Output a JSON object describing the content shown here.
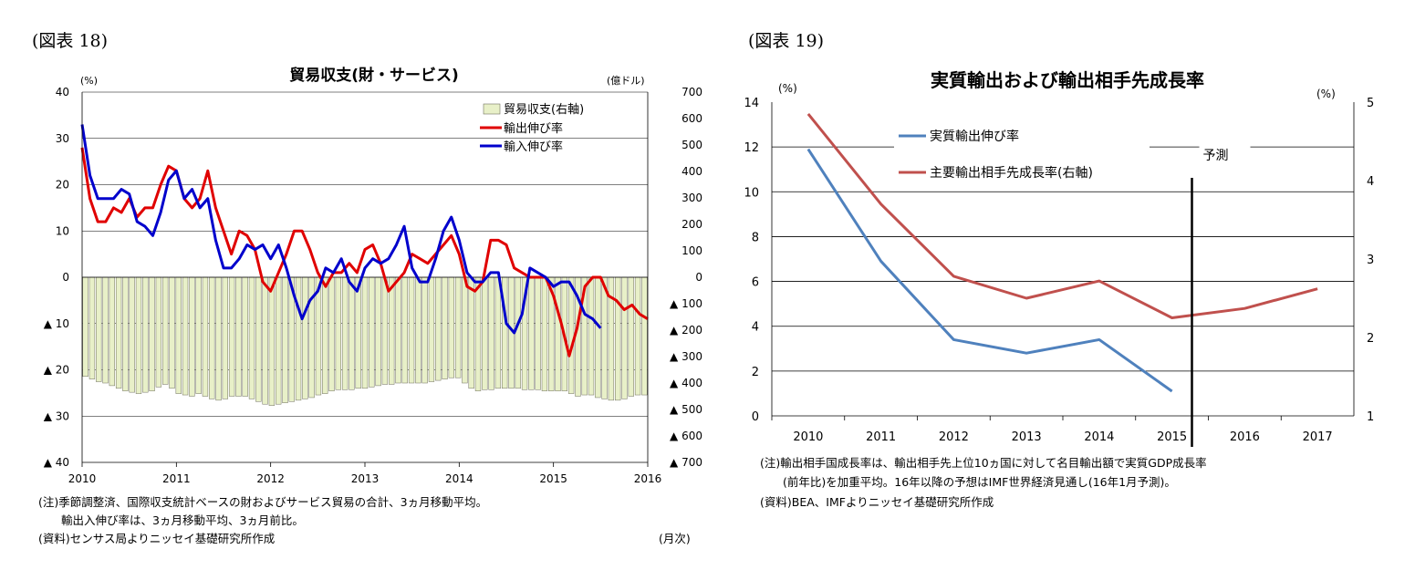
{
  "figures": [
    {
      "label": "(図表 18)",
      "notes": [
        "(注)季節調整済、国際収支統計ベースの財およびサービス貿易の合計、3ヵ月移動平均。",
        "　　輸出入伸び率は、3ヵ月移動平均、3ヵ月前比。",
        "(資料)センサス局よりニッセイ基礎研究所作成"
      ],
      "month_note": "(月次)"
    },
    {
      "label": "(図表 19)",
      "notes": [
        "(注)輸出相手国成長率は、輸出相手先上位10ヵ国に対して名目輸出額で実質GDP成長率",
        "　　(前年比)を加重平均。16年以降の予想はIMF世界経済見通し(16年1月予測)。",
        "(資料)BEA、IMFよりニッセイ基礎研究所作成"
      ]
    }
  ],
  "chart_data": [
    {
      "type": "bar+line",
      "title": "貿易収支(財・サービス)",
      "left_unit": "(%)",
      "right_unit": "(億ドル)",
      "ylim_left": [
        -40,
        40
      ],
      "ylim_right": [
        -700,
        700
      ],
      "left_ticks": [
        "40",
        "30",
        "20",
        "10",
        "0",
        "▲ 10",
        "▲ 20",
        "▲ 30",
        "▲ 40"
      ],
      "right_ticks": [
        "700",
        "600",
        "500",
        "400",
        "300",
        "200",
        "100",
        "0",
        "▲ 100",
        "▲ 200",
        "▲ 300",
        "▲ 400",
        "▲ 500",
        "▲ 600",
        "▲ 700"
      ],
      "x_ticks": [
        "2010",
        "2011",
        "2012",
        "2013",
        "2014",
        "2015",
        "2016"
      ],
      "x_range": [
        "2010-01",
        "2016-01"
      ],
      "grid": "horizontal",
      "legend_position": "top-right",
      "series": [
        {
          "name": "貿易収支(右軸)",
          "axis": "right",
          "kind": "bar",
          "color": "#e8f0c8",
          "edge": "#707060",
          "values": [
            -375,
            -385,
            -395,
            -400,
            -410,
            -420,
            -430,
            -435,
            -440,
            -435,
            -430,
            -415,
            -405,
            -420,
            -440,
            -445,
            -450,
            -440,
            -450,
            -460,
            -465,
            -460,
            -450,
            -450,
            -450,
            -460,
            -470,
            -480,
            -485,
            -480,
            -475,
            -470,
            -465,
            -460,
            -455,
            -445,
            -440,
            -430,
            -425,
            -425,
            -425,
            -420,
            -420,
            -415,
            -410,
            -405,
            -405,
            -400,
            -400,
            -400,
            -400,
            -400,
            -395,
            -390,
            -385,
            -380,
            -380,
            -400,
            -420,
            -430,
            -425,
            -425,
            -420,
            -420,
            -420,
            -420,
            -425,
            -425,
            -425,
            -430,
            -430,
            -430,
            -430,
            -440,
            -450,
            -445,
            -445,
            -455,
            -460,
            -465,
            -465,
            -460,
            -450,
            -445,
            -445
          ]
        },
        {
          "name": "輸出伸び率",
          "axis": "left",
          "kind": "line",
          "color": "#e00000",
          "values": [
            28,
            17,
            12,
            12,
            15,
            14,
            17,
            13,
            15,
            15,
            20,
            24,
            23,
            17,
            15,
            17,
            23,
            15,
            10,
            5,
            10,
            9,
            6,
            -1,
            -3,
            1,
            5,
            10,
            10,
            6,
            1,
            -2,
            1,
            1,
            3,
            1,
            6,
            7,
            3,
            -3,
            -1,
            1,
            5,
            4,
            3,
            5,
            7,
            9,
            5,
            -2,
            -3,
            -1,
            8,
            8,
            7,
            2,
            1,
            0,
            0,
            0,
            -4,
            -10,
            -17,
            -11,
            -2,
            0,
            0,
            -4,
            -5,
            -7,
            -6,
            -8,
            -9
          ]
        },
        {
          "name": "輸入伸び率",
          "axis": "left",
          "kind": "line",
          "color": "#0000cc",
          "values": [
            33,
            22,
            17,
            17,
            17,
            19,
            18,
            12,
            11,
            9,
            14,
            21,
            23,
            17,
            19,
            15,
            17,
            8,
            2,
            2,
            4,
            7,
            6,
            7,
            4,
            7,
            2,
            -4,
            -9,
            -5,
            -3,
            2,
            1,
            4,
            -1,
            -3,
            2,
            4,
            3,
            4,
            7,
            11,
            2,
            -1,
            -1,
            4,
            10,
            13,
            8,
            1,
            -1,
            -1,
            1,
            1,
            -10,
            -12,
            -8,
            2,
            1,
            0,
            -2,
            -1,
            -1,
            -4,
            -8,
            -9,
            -11
          ]
        }
      ]
    },
    {
      "type": "line",
      "title": "実質輸出および輸出相手先成長率",
      "left_unit": "(%)",
      "right_unit": "(%)",
      "categories": [
        "2010",
        "2011",
        "2012",
        "2013",
        "2014",
        "2015",
        "2016",
        "2017"
      ],
      "ylim_left": [
        0,
        14
      ],
      "ylim_right": [
        1,
        5
      ],
      "left_ticks": [
        "14",
        "12",
        "10",
        "8",
        "6",
        "4",
        "2",
        "0"
      ],
      "right_ticks": [
        "5",
        "4",
        "3",
        "2",
        "1"
      ],
      "grid": "horizontal",
      "legend_position": "top-center",
      "forecast_label": "予測",
      "forecast_start_between": [
        "2015",
        "2016"
      ],
      "series": [
        {
          "name": "実質輸出伸び率",
          "axis": "left",
          "color": "#4f81bd",
          "values": [
            11.9,
            6.9,
            3.4,
            2.8,
            3.4,
            1.1,
            null,
            null
          ]
        },
        {
          "name": "主要輸出相手先成長率(右軸)",
          "axis": "right",
          "color": "#c0504d",
          "values": [
            4.85,
            3.7,
            2.78,
            2.5,
            2.72,
            2.25,
            2.37,
            2.62
          ]
        }
      ]
    }
  ]
}
